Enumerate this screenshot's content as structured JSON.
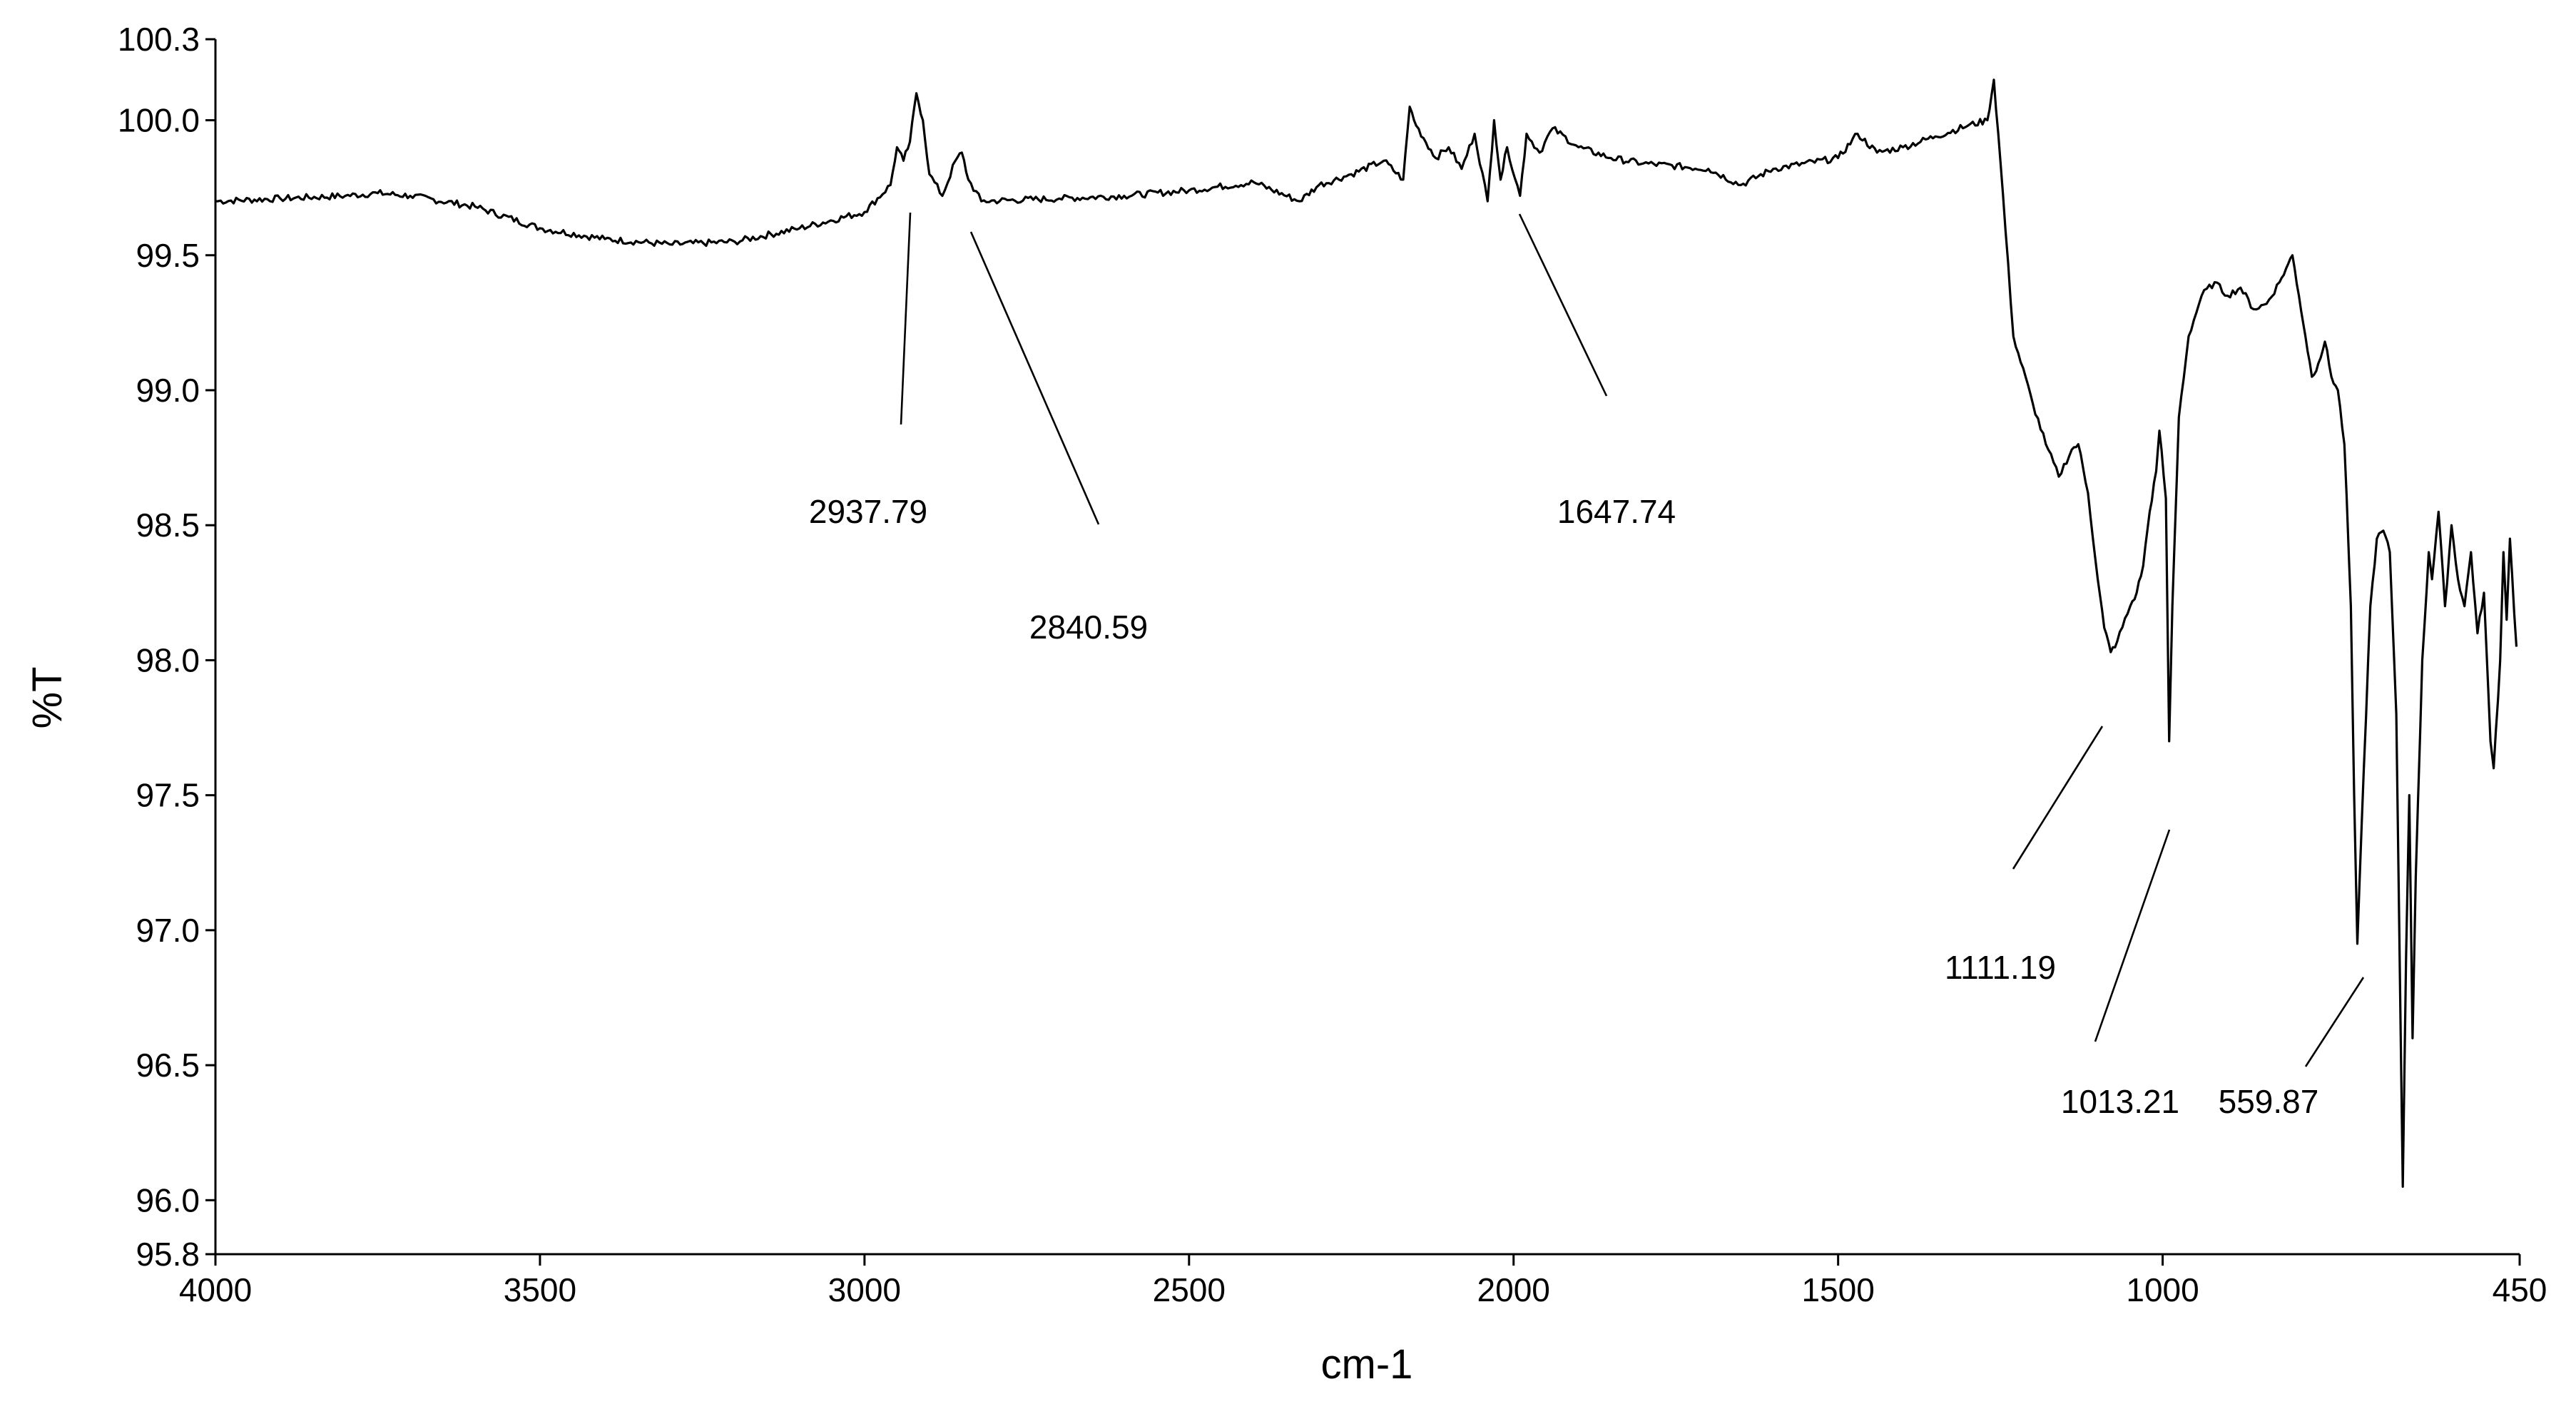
{
  "chart_data": {
    "type": "line",
    "title": "",
    "xlabel": "cm-1",
    "ylabel": "%T",
    "xlim": [
      4000,
      450
    ],
    "ylim": [
      95.8,
      100.3
    ],
    "x_reversed": true,
    "grid": false,
    "legend": "none",
    "x_ticks": [
      {
        "value": 4000,
        "label": "4000"
      },
      {
        "value": 3500,
        "label": "3500"
      },
      {
        "value": 3000,
        "label": "3000"
      },
      {
        "value": 2500,
        "label": "2500"
      },
      {
        "value": 2000,
        "label": "2000"
      },
      {
        "value": 1500,
        "label": "1500"
      },
      {
        "value": 1000,
        "label": "1000"
      },
      {
        "value": 450,
        "label": "450"
      }
    ],
    "y_ticks": [
      {
        "value": 100.3,
        "label": "100.3"
      },
      {
        "value": 100.0,
        "label": "100.0"
      },
      {
        "value": 99.5,
        "label": "99.5"
      },
      {
        "value": 99.0,
        "label": "99.0"
      },
      {
        "value": 98.5,
        "label": "98.5"
      },
      {
        "value": 98.0,
        "label": "98.0"
      },
      {
        "value": 97.5,
        "label": "97.5"
      },
      {
        "value": 97.0,
        "label": "97.0"
      },
      {
        "value": 96.5,
        "label": "96.5"
      },
      {
        "value": 96.0,
        "label": "96.0"
      },
      {
        "value": 95.8,
        "label": "95.8"
      }
    ],
    "series": [
      {
        "color": "#000000",
        "points": [
          [
            4000,
            99.7
          ],
          [
            3900,
            99.71
          ],
          [
            3800,
            99.72
          ],
          [
            3750,
            99.73
          ],
          [
            3700,
            99.72
          ],
          [
            3600,
            99.68
          ],
          [
            3500,
            99.6
          ],
          [
            3400,
            99.56
          ],
          [
            3300,
            99.54
          ],
          [
            3200,
            99.55
          ],
          [
            3100,
            99.6
          ],
          [
            3000,
            99.66
          ],
          [
            2960,
            99.76
          ],
          [
            2950,
            99.9
          ],
          [
            2940,
            99.85
          ],
          [
            2930,
            99.92
          ],
          [
            2920,
            100.1
          ],
          [
            2910,
            100.0
          ],
          [
            2900,
            99.8
          ],
          [
            2880,
            99.72
          ],
          [
            2860,
            99.85
          ],
          [
            2850,
            99.88
          ],
          [
            2840,
            99.78
          ],
          [
            2820,
            99.7
          ],
          [
            2700,
            99.71
          ],
          [
            2600,
            99.72
          ],
          [
            2500,
            99.74
          ],
          [
            2400,
            99.77
          ],
          [
            2330,
            99.7
          ],
          [
            2300,
            99.76
          ],
          [
            2250,
            99.8
          ],
          [
            2200,
            99.85
          ],
          [
            2170,
            99.78
          ],
          [
            2160,
            100.05
          ],
          [
            2150,
            99.98
          ],
          [
            2120,
            99.86
          ],
          [
            2100,
            99.9
          ],
          [
            2080,
            99.82
          ],
          [
            2060,
            99.95
          ],
          [
            2040,
            99.7
          ],
          [
            2030,
            100.0
          ],
          [
            2020,
            99.78
          ],
          [
            2010,
            99.9
          ],
          [
            1990,
            99.72
          ],
          [
            1980,
            99.95
          ],
          [
            1960,
            99.88
          ],
          [
            1940,
            99.97
          ],
          [
            1900,
            99.9
          ],
          [
            1850,
            99.86
          ],
          [
            1800,
            99.84
          ],
          [
            1700,
            99.82
          ],
          [
            1650,
            99.76
          ],
          [
            1600,
            99.82
          ],
          [
            1500,
            99.86
          ],
          [
            1470,
            99.95
          ],
          [
            1440,
            99.88
          ],
          [
            1400,
            99.9
          ],
          [
            1350,
            99.94
          ],
          [
            1300,
            99.98
          ],
          [
            1270,
            100.0
          ],
          [
            1260,
            100.15
          ],
          [
            1250,
            99.85
          ],
          [
            1230,
            99.2
          ],
          [
            1200,
            98.95
          ],
          [
            1180,
            98.8
          ],
          [
            1160,
            98.68
          ],
          [
            1140,
            98.78
          ],
          [
            1130,
            98.8
          ],
          [
            1115,
            98.62
          ],
          [
            1100,
            98.3
          ],
          [
            1090,
            98.12
          ],
          [
            1080,
            98.03
          ],
          [
            1070,
            98.07
          ],
          [
            1050,
            98.2
          ],
          [
            1040,
            98.25
          ],
          [
            1030,
            98.35
          ],
          [
            1020,
            98.55
          ],
          [
            1010,
            98.7
          ],
          [
            1005,
            98.85
          ],
          [
            995,
            98.6
          ],
          [
            990,
            97.7
          ],
          [
            985,
            98.2
          ],
          [
            975,
            98.9
          ],
          [
            960,
            99.2
          ],
          [
            940,
            99.35
          ],
          [
            920,
            99.4
          ],
          [
            900,
            99.35
          ],
          [
            880,
            99.38
          ],
          [
            860,
            99.3
          ],
          [
            840,
            99.32
          ],
          [
            820,
            99.4
          ],
          [
            810,
            99.45
          ],
          [
            800,
            99.5
          ],
          [
            790,
            99.35
          ],
          [
            780,
            99.2
          ],
          [
            770,
            99.05
          ],
          [
            760,
            99.1
          ],
          [
            750,
            99.18
          ],
          [
            740,
            99.05
          ],
          [
            730,
            99.0
          ],
          [
            720,
            98.8
          ],
          [
            710,
            98.2
          ],
          [
            705,
            97.5
          ],
          [
            700,
            96.95
          ],
          [
            690,
            97.6
          ],
          [
            680,
            98.2
          ],
          [
            670,
            98.45
          ],
          [
            660,
            98.48
          ],
          [
            650,
            98.4
          ],
          [
            640,
            97.8
          ],
          [
            630,
            96.05
          ],
          [
            625,
            96.9
          ],
          [
            620,
            97.5
          ],
          [
            615,
            96.6
          ],
          [
            610,
            97.2
          ],
          [
            600,
            98.0
          ],
          [
            590,
            98.4
          ],
          [
            585,
            98.3
          ],
          [
            575,
            98.55
          ],
          [
            565,
            98.2
          ],
          [
            555,
            98.5
          ],
          [
            545,
            98.3
          ],
          [
            535,
            98.2
          ],
          [
            525,
            98.4
          ],
          [
            515,
            98.1
          ],
          [
            505,
            98.25
          ],
          [
            495,
            97.7
          ],
          [
            490,
            97.6
          ],
          [
            480,
            98.0
          ],
          [
            475,
            98.4
          ],
          [
            470,
            98.15
          ],
          [
            465,
            98.45
          ],
          [
            455,
            98.05
          ]
        ]
      }
    ],
    "annotations": [
      {
        "text": "2937.79",
        "x": 2937.79
      },
      {
        "text": "2840.59",
        "x": 2840.59
      },
      {
        "text": "1647.74",
        "x": 1647.74
      },
      {
        "text": "1111.19",
        "x": 1111.19
      },
      {
        "text": "1013.21",
        "x": 1013.21
      },
      {
        "text": "559.87",
        "x": 559.87
      }
    ]
  }
}
